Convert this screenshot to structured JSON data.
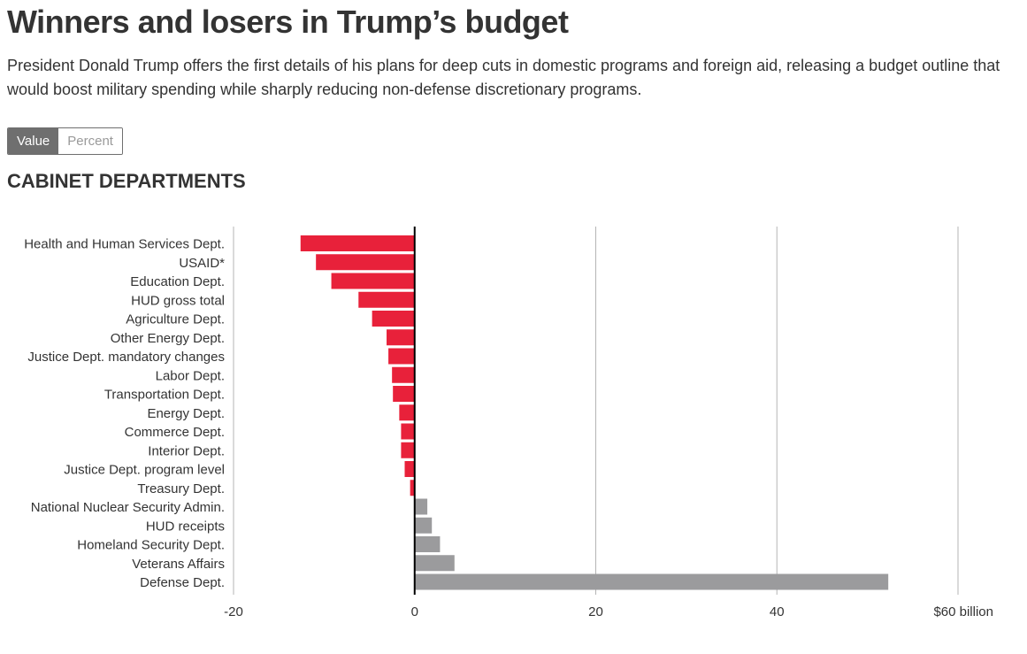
{
  "header": {
    "title": "Winners and losers in Trump’s budget",
    "subtitle": "President Donald Trump offers the first details of his plans for deep cuts in domestic programs and foreign aid, releasing a budget outline that would boost military spending while sharply reducing non-defense discretionary programs."
  },
  "toggle": {
    "value_label": "Value",
    "percent_label": "Percent",
    "selected": "Value"
  },
  "section": {
    "title": "CABINET DEPARTMENTS"
  },
  "colors": {
    "negative": "#e8213a",
    "positive": "#9b9b9d",
    "grid": "#b5b5b5",
    "zero_line": "#000000",
    "text": "#333333"
  },
  "chart_data": {
    "type": "bar",
    "orientation": "horizontal",
    "title": "CABINET DEPARTMENTS",
    "xlabel": "",
    "ylabel": "",
    "unit": "billion",
    "xlim": [
      -20,
      60
    ],
    "xticks": [
      -20,
      0,
      20,
      40,
      60
    ],
    "xtick_labels": [
      "-20",
      "0",
      "20",
      "40",
      "$60 billion"
    ],
    "grid": true,
    "categories": [
      "Health and Human Services Dept.",
      "USAID*",
      "Education Dept.",
      "HUD gross total",
      "Agriculture Dept.",
      "Other Energy Dept.",
      "Justice Dept. mandatory changes",
      "Labor Dept.",
      "Transportation Dept.",
      "Energy Dept.",
      "Commerce Dept.",
      "Interior Dept.",
      "Justice Dept. program level",
      "Treasury Dept.",
      "National Nuclear Security Admin.",
      "HUD receipts",
      "Homeland Security Dept.",
      "Veterans Affairs",
      "Defense Dept."
    ],
    "values": [
      -12.6,
      -10.9,
      -9.2,
      -6.2,
      -4.7,
      -3.1,
      -2.9,
      -2.5,
      -2.4,
      -1.7,
      -1.5,
      -1.5,
      -1.1,
      -0.5,
      1.4,
      1.9,
      2.8,
      4.4,
      52.3
    ]
  }
}
